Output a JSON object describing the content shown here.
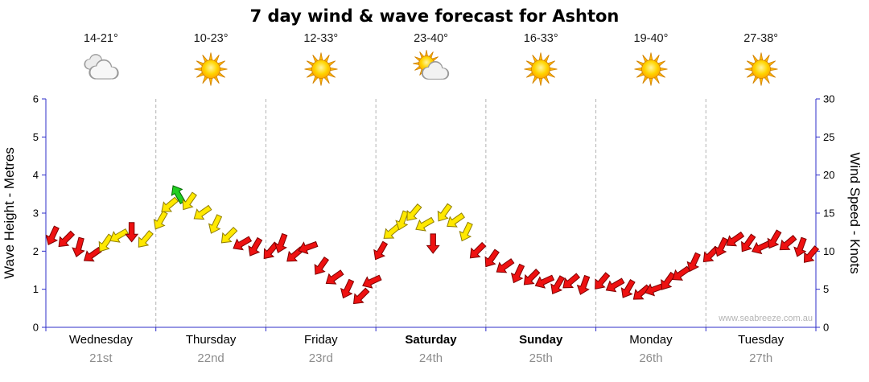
{
  "title": "7 day wind & wave forecast for Ashton",
  "watermark": "www.seabreeze.com.au",
  "days": [
    {
      "name": "Wednesday",
      "date": "21st",
      "temp": "14-21°",
      "icon": "cloudy",
      "bold": false
    },
    {
      "name": "Thursday",
      "date": "22nd",
      "temp": "10-23°",
      "icon": "sunny",
      "bold": false
    },
    {
      "name": "Friday",
      "date": "23rd",
      "temp": "12-33°",
      "icon": "sunny",
      "bold": false
    },
    {
      "name": "Saturday",
      "date": "24th",
      "temp": "23-40°",
      "icon": "partly-cloudy",
      "bold": true
    },
    {
      "name": "Sunday",
      "date": "25th",
      "temp": "16-33°",
      "icon": "sunny",
      "bold": true
    },
    {
      "name": "Monday",
      "date": "26th",
      "temp": "19-40°",
      "icon": "sunny",
      "bold": false
    },
    {
      "name": "Tuesday",
      "date": "27th",
      "temp": "27-38°",
      "icon": "sunny",
      "bold": false
    }
  ],
  "chart_data": {
    "type": "scatter",
    "subtype": "wind-direction-arrows",
    "title": "7 day wind & wave forecast for Ashton",
    "y_left": {
      "label": "Wave Height - Metres",
      "min": 0,
      "max": 6,
      "ticks": [
        0,
        1,
        2,
        3,
        4,
        5,
        6
      ]
    },
    "y_right": {
      "label": "Wind Speed - Knots",
      "min": 0,
      "max": 30,
      "ticks": [
        0,
        5,
        10,
        15,
        20,
        25,
        30
      ]
    },
    "x_categories": [
      "Wednesday 21st",
      "Thursday 22nd",
      "Friday 23rd",
      "Saturday 24th",
      "Sunday 25th",
      "Monday 26th",
      "Tuesday 27th"
    ],
    "grid": "vertical-dashed-day-boundaries",
    "legend_position": "none",
    "colors": {
      "red": "#ee1111",
      "yellow": "#ffe800",
      "green": "#22cf22",
      "axis": "#2d2dc8",
      "grid": "#b3b3b3"
    },
    "points": [
      {
        "d": 0,
        "t": 0.06,
        "kn": 12,
        "dir": 205,
        "c": "red"
      },
      {
        "d": 0,
        "t": 0.18,
        "kn": 11.5,
        "dir": 225,
        "c": "red"
      },
      {
        "d": 0,
        "t": 0.3,
        "kn": 10.5,
        "dir": 195,
        "c": "red"
      },
      {
        "d": 0,
        "t": 0.42,
        "kn": 9.5,
        "dir": 235,
        "c": "red"
      },
      {
        "d": 0,
        "t": 0.54,
        "kn": 11,
        "dir": 215,
        "c": "yellow"
      },
      {
        "d": 0,
        "t": 0.66,
        "kn": 12,
        "dir": 240,
        "c": "yellow"
      },
      {
        "d": 0,
        "t": 0.78,
        "kn": 12.5,
        "dir": 180,
        "c": "red"
      },
      {
        "d": 0,
        "t": 0.9,
        "kn": 11.5,
        "dir": 220,
        "c": "yellow"
      },
      {
        "d": 1,
        "t": 0.04,
        "kn": 14,
        "dir": 210,
        "c": "yellow"
      },
      {
        "d": 1,
        "t": 0.12,
        "kn": 16,
        "dir": 230,
        "c": "yellow"
      },
      {
        "d": 1,
        "t": 0.2,
        "kn": 17.5,
        "dir": 330,
        "c": "green"
      },
      {
        "d": 1,
        "t": 0.3,
        "kn": 16.5,
        "dir": 215,
        "c": "yellow"
      },
      {
        "d": 1,
        "t": 0.42,
        "kn": 15,
        "dir": 235,
        "c": "yellow"
      },
      {
        "d": 1,
        "t": 0.54,
        "kn": 13.5,
        "dir": 205,
        "c": "yellow"
      },
      {
        "d": 1,
        "t": 0.66,
        "kn": 12,
        "dir": 225,
        "c": "yellow"
      },
      {
        "d": 1,
        "t": 0.78,
        "kn": 11,
        "dir": 240,
        "c": "red"
      },
      {
        "d": 1,
        "t": 0.9,
        "kn": 10.5,
        "dir": 210,
        "c": "red"
      },
      {
        "d": 2,
        "t": 0.04,
        "kn": 10,
        "dir": 220,
        "c": "red"
      },
      {
        "d": 2,
        "t": 0.14,
        "kn": 11,
        "dir": 200,
        "c": "red"
      },
      {
        "d": 2,
        "t": 0.26,
        "kn": 9.5,
        "dir": 230,
        "c": "red"
      },
      {
        "d": 2,
        "t": 0.38,
        "kn": 10.5,
        "dir": 250,
        "c": "red"
      },
      {
        "d": 2,
        "t": 0.5,
        "kn": 8,
        "dir": 215,
        "c": "red"
      },
      {
        "d": 2,
        "t": 0.62,
        "kn": 6.5,
        "dir": 235,
        "c": "red"
      },
      {
        "d": 2,
        "t": 0.74,
        "kn": 5,
        "dir": 205,
        "c": "red"
      },
      {
        "d": 2,
        "t": 0.86,
        "kn": 4,
        "dir": 225,
        "c": "red"
      },
      {
        "d": 2,
        "t": 0.96,
        "kn": 6,
        "dir": 245,
        "c": "red"
      },
      {
        "d": 3,
        "t": 0.04,
        "kn": 10,
        "dir": 210,
        "c": "red"
      },
      {
        "d": 3,
        "t": 0.14,
        "kn": 12.5,
        "dir": 230,
        "c": "yellow"
      },
      {
        "d": 3,
        "t": 0.24,
        "kn": 14,
        "dir": 200,
        "c": "yellow"
      },
      {
        "d": 3,
        "t": 0.34,
        "kn": 15,
        "dir": 220,
        "c": "yellow"
      },
      {
        "d": 3,
        "t": 0.44,
        "kn": 13.5,
        "dir": 240,
        "c": "yellow"
      },
      {
        "d": 3,
        "t": 0.52,
        "kn": 11,
        "dir": 180,
        "c": "red"
      },
      {
        "d": 3,
        "t": 0.62,
        "kn": 15,
        "dir": 215,
        "c": "yellow"
      },
      {
        "d": 3,
        "t": 0.72,
        "kn": 14,
        "dir": 235,
        "c": "yellow"
      },
      {
        "d": 3,
        "t": 0.82,
        "kn": 12.5,
        "dir": 205,
        "c": "yellow"
      },
      {
        "d": 3,
        "t": 0.92,
        "kn": 10,
        "dir": 225,
        "c": "red"
      },
      {
        "d": 4,
        "t": 0.05,
        "kn": 9,
        "dir": 215,
        "c": "red"
      },
      {
        "d": 4,
        "t": 0.17,
        "kn": 8,
        "dir": 235,
        "c": "red"
      },
      {
        "d": 4,
        "t": 0.29,
        "kn": 7,
        "dir": 205,
        "c": "red"
      },
      {
        "d": 4,
        "t": 0.41,
        "kn": 6.5,
        "dir": 225,
        "c": "red"
      },
      {
        "d": 4,
        "t": 0.53,
        "kn": 6,
        "dir": 245,
        "c": "red"
      },
      {
        "d": 4,
        "t": 0.65,
        "kn": 5.5,
        "dir": 210,
        "c": "red"
      },
      {
        "d": 4,
        "t": 0.77,
        "kn": 6,
        "dir": 230,
        "c": "red"
      },
      {
        "d": 4,
        "t": 0.89,
        "kn": 5.5,
        "dir": 200,
        "c": "red"
      },
      {
        "d": 5,
        "t": 0.05,
        "kn": 6,
        "dir": 220,
        "c": "red"
      },
      {
        "d": 5,
        "t": 0.17,
        "kn": 5.5,
        "dir": 240,
        "c": "red"
      },
      {
        "d": 5,
        "t": 0.29,
        "kn": 5,
        "dir": 210,
        "c": "red"
      },
      {
        "d": 5,
        "t": 0.41,
        "kn": 4.5,
        "dir": 230,
        "c": "red"
      },
      {
        "d": 5,
        "t": 0.53,
        "kn": 5,
        "dir": 250,
        "c": "red"
      },
      {
        "d": 5,
        "t": 0.65,
        "kn": 6,
        "dir": 215,
        "c": "red"
      },
      {
        "d": 5,
        "t": 0.77,
        "kn": 7,
        "dir": 235,
        "c": "red"
      },
      {
        "d": 5,
        "t": 0.89,
        "kn": 8.5,
        "dir": 205,
        "c": "red"
      },
      {
        "d": 6,
        "t": 0.04,
        "kn": 9.5,
        "dir": 225,
        "c": "red"
      },
      {
        "d": 6,
        "t": 0.14,
        "kn": 10.5,
        "dir": 205,
        "c": "red"
      },
      {
        "d": 6,
        "t": 0.26,
        "kn": 11.5,
        "dir": 235,
        "c": "red"
      },
      {
        "d": 6,
        "t": 0.38,
        "kn": 11,
        "dir": 215,
        "c": "red"
      },
      {
        "d": 6,
        "t": 0.5,
        "kn": 10.5,
        "dir": 245,
        "c": "red"
      },
      {
        "d": 6,
        "t": 0.62,
        "kn": 11.5,
        "dir": 210,
        "c": "red"
      },
      {
        "d": 6,
        "t": 0.74,
        "kn": 11,
        "dir": 230,
        "c": "red"
      },
      {
        "d": 6,
        "t": 0.86,
        "kn": 10.5,
        "dir": 200,
        "c": "red"
      },
      {
        "d": 6,
        "t": 0.95,
        "kn": 9.5,
        "dir": 220,
        "c": "red"
      }
    ]
  }
}
